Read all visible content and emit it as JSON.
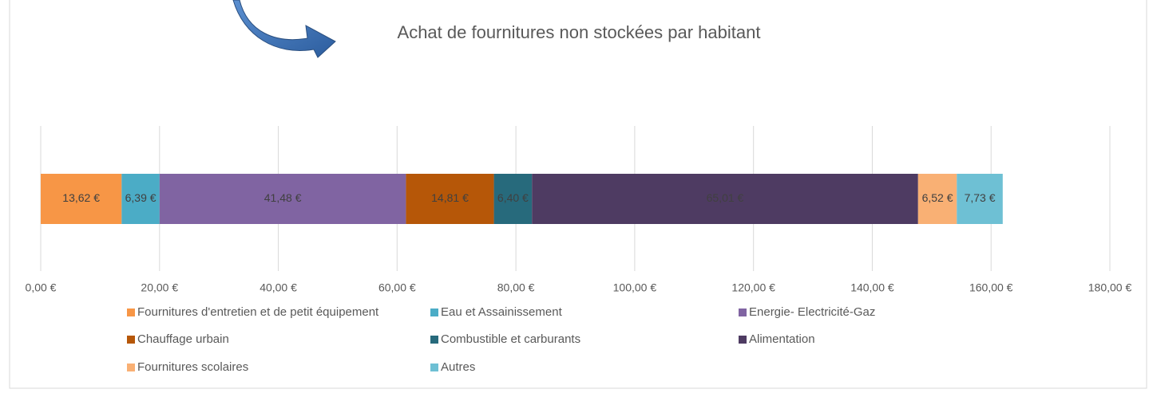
{
  "chart_data": {
    "type": "stacked_bar_horizontal",
    "title": "Achat de fournitures non stockées par habitant",
    "series": [
      {
        "name": "Fournitures d'entretien et de petit équipement",
        "color": "#f79646",
        "values": [
          13.62
        ],
        "value_labels": [
          "13,62 €"
        ]
      },
      {
        "name": "Eau et Assainissement",
        "color": "#4bacc6",
        "values": [
          6.39
        ],
        "value_labels": [
          "6,39 €"
        ]
      },
      {
        "name": "Energie- Electricité-Gaz",
        "color": "#8064a2",
        "values": [
          41.48
        ],
        "value_labels": [
          "41,48 €"
        ]
      },
      {
        "name": "Chauffage urbain",
        "color": "#b65708",
        "values": [
          14.81
        ],
        "value_labels": [
          "14,81 €"
        ]
      },
      {
        "name": "Combustible et carburants",
        "color": "#276a7c",
        "values": [
          6.4
        ],
        "value_labels": [
          "6,40 €"
        ]
      },
      {
        "name": "Alimentation",
        "color": "#4e3b62",
        "values": [
          65.01
        ],
        "value_labels": [
          "65,01 €"
        ]
      },
      {
        "name": "Fournitures scolaires",
        "color": "#f9b074",
        "values": [
          6.52
        ],
        "value_labels": [
          "6,52 €"
        ]
      },
      {
        "name": "Autres",
        "color": "#6ec0d4",
        "values": [
          7.73
        ],
        "value_labels": [
          "7,73 €"
        ]
      }
    ],
    "xlim": [
      0,
      180
    ],
    "xticks": [
      {
        "value": 0,
        "label": "0,00 €"
      },
      {
        "value": 20,
        "label": "20,00 €"
      },
      {
        "value": 40,
        "label": "40,00 €"
      },
      {
        "value": 60,
        "label": "60,00 €"
      },
      {
        "value": 80,
        "label": "80,00 €"
      },
      {
        "value": 100,
        "label": "100,00 €"
      },
      {
        "value": 120,
        "label": "120,00 €"
      },
      {
        "value": 140,
        "label": "140,00 €"
      },
      {
        "value": 160,
        "label": "160,00 €"
      },
      {
        "value": 180,
        "label": "180,00 €"
      }
    ],
    "grid": true,
    "legend": "bottom"
  }
}
